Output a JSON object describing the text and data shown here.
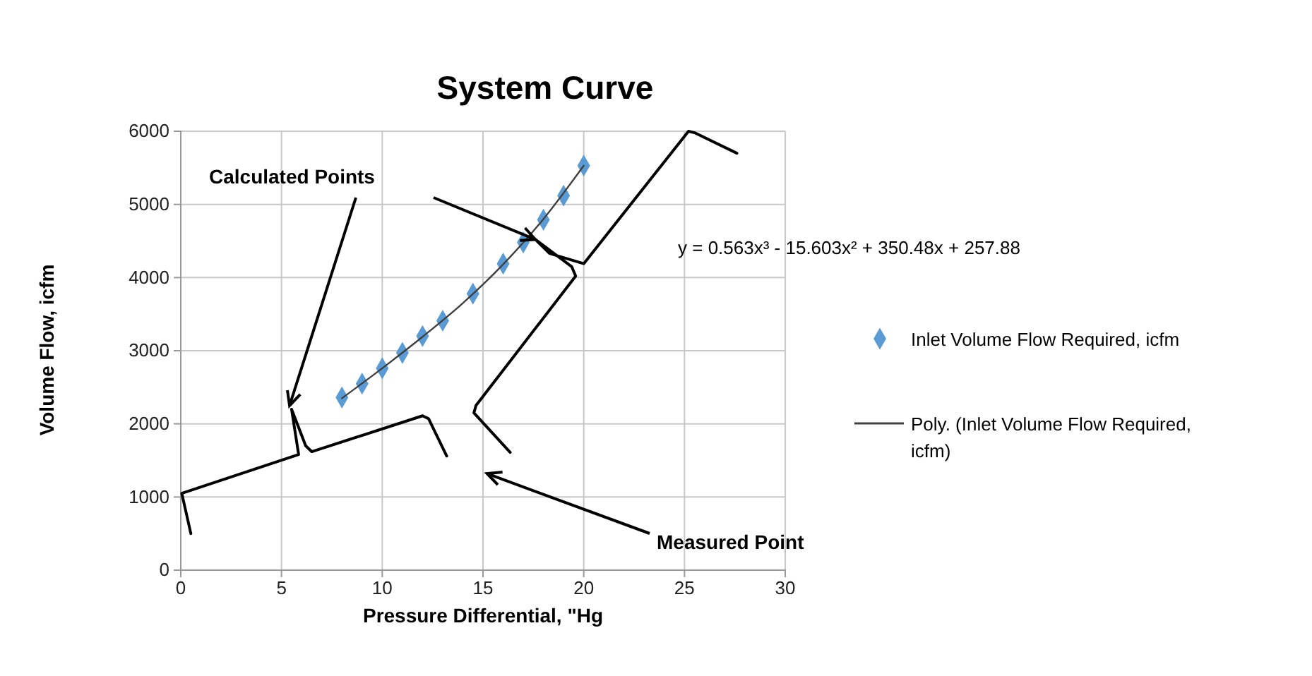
{
  "chart_data": {
    "type": "scatter",
    "title": "System Curve",
    "xlabel": "Pressure Differential, \"Hg",
    "ylabel": "Volume Flow, icfm",
    "xlim": [
      0,
      30
    ],
    "ylim": [
      0,
      6000
    ],
    "xticks": [
      0,
      5,
      10,
      15,
      20,
      25,
      30
    ],
    "yticks": [
      0,
      1000,
      2000,
      3000,
      4000,
      5000,
      6000
    ],
    "grid": true,
    "legend": "right",
    "series": [
      {
        "name": "Inlet Volume Flow Required, icfm",
        "marker": "diamond",
        "color": "#5b9bd5",
        "x": [
          8,
          9,
          10,
          11,
          12,
          13,
          14.5,
          16,
          17,
          18,
          19,
          20
        ],
        "values": [
          2360,
          2550,
          2760,
          2970,
          3200,
          3410,
          3780,
          4190,
          4480,
          4790,
          5120,
          5530
        ]
      },
      {
        "name": "Poly. (Inlet Volume Flow Required, icfm)",
        "type": "line",
        "color": "#404040",
        "x": [
          8,
          10,
          12,
          14,
          16,
          18,
          20
        ],
        "values": [
          2350,
          2760,
          3190,
          3650,
          4180,
          4800,
          5530
        ]
      },
      {
        "type": "line",
        "color": "#000000",
        "x": [
          0.5,
          0.05,
          5.85,
          5.5,
          6.2,
          6.5,
          12,
          12.3,
          13.2
        ],
        "values": [
          500,
          1050,
          1580,
          2200,
          1700,
          1620,
          2110,
          2070,
          1560
        ]
      },
      {
        "type": "line",
        "color": "#000000",
        "x": [
          16.35,
          14.55,
          14.65,
          19.6,
          19.4,
          17.6,
          18.3,
          20,
          25.2,
          25.5,
          27.6
        ],
        "values": [
          1610,
          2150,
          2250,
          4020,
          4150,
          4520,
          4330,
          4190,
          6000,
          5980,
          5700
        ]
      }
    ],
    "annotations": [
      {
        "text": "Calculated Points",
        "x": 5.4,
        "y": 2250
      },
      "Measured Point",
      "y = 0.563x³ - 15.603x² + 350.48x + 257.88"
    ]
  }
}
